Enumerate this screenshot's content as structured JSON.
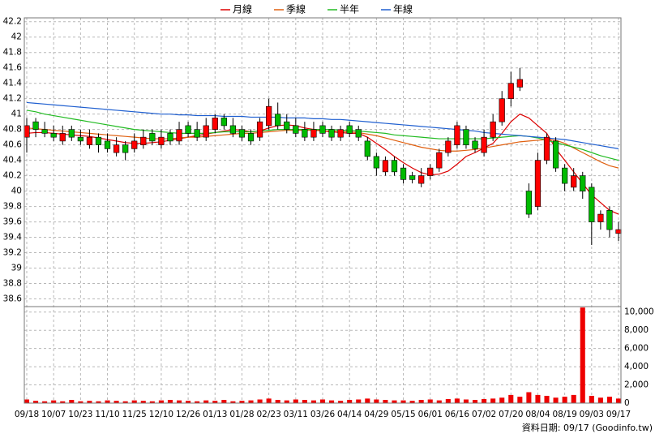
{
  "chart_data": {
    "type": "candlestick",
    "legend": "top",
    "grid": true,
    "up_color": "#ff0000",
    "down_color": "#00bb00",
    "wick_color": "#000000",
    "categories": [
      "09/18",
      null,
      null,
      "10/07",
      null,
      null,
      "10/23",
      null,
      null,
      "11/10",
      null,
      null,
      "11/25",
      null,
      null,
      "12/10",
      null,
      null,
      "12/26",
      null,
      null,
      "01/13",
      null,
      null,
      "01/28",
      null,
      null,
      "02/23",
      null,
      null,
      "03/11",
      null,
      null,
      "03/26",
      null,
      null,
      "04/14",
      null,
      null,
      "04/29",
      null,
      null,
      "05/15",
      null,
      null,
      "06/01",
      null,
      null,
      "06/16",
      null,
      null,
      "07/02",
      null,
      null,
      "07/20",
      null,
      null,
      "08/04",
      null,
      null,
      "08/19",
      null,
      null,
      "09/03",
      null,
      null,
      "09/17"
    ],
    "open": [
      40.7,
      40.9,
      40.8,
      40.75,
      40.65,
      40.8,
      40.7,
      40.6,
      40.7,
      40.65,
      40.5,
      40.6,
      40.55,
      40.6,
      40.75,
      40.6,
      40.75,
      40.65,
      40.85,
      40.8,
      40.7,
      40.8,
      40.95,
      40.85,
      40.8,
      40.75,
      40.7,
      40.85,
      41.0,
      40.9,
      40.85,
      40.8,
      40.7,
      40.85,
      40.8,
      40.7,
      40.85,
      40.8,
      40.65,
      40.45,
      40.25,
      40.4,
      40.3,
      40.2,
      40.1,
      40.2,
      40.3,
      40.5,
      40.6,
      40.8,
      40.65,
      40.5,
      40.7,
      40.9,
      41.2,
      41.35,
      40.0,
      39.8,
      40.4,
      40.65,
      40.3,
      40.05,
      40.2,
      40.05,
      39.6,
      39.75,
      39.45
    ],
    "high": [
      40.95,
      40.95,
      40.9,
      40.85,
      40.85,
      40.85,
      40.8,
      40.8,
      40.75,
      40.75,
      40.7,
      40.65,
      40.75,
      40.8,
      40.8,
      40.8,
      40.8,
      40.9,
      40.9,
      40.9,
      40.95,
      41.0,
      41.0,
      40.95,
      40.85,
      40.8,
      40.95,
      41.2,
      41.15,
      41.0,
      40.95,
      40.9,
      40.9,
      40.9,
      40.85,
      40.85,
      40.9,
      40.85,
      40.7,
      40.5,
      40.45,
      40.45,
      40.35,
      40.25,
      40.3,
      40.35,
      40.55,
      40.7,
      40.9,
      40.85,
      40.7,
      40.8,
      41.0,
      41.3,
      41.55,
      41.6,
      40.1,
      40.5,
      40.75,
      40.7,
      40.35,
      40.3,
      40.25,
      40.1,
      39.75,
      39.8,
      39.6
    ],
    "low": [
      40.5,
      40.7,
      40.7,
      40.65,
      40.6,
      40.65,
      40.6,
      40.55,
      40.5,
      40.5,
      40.45,
      40.4,
      40.5,
      40.55,
      40.6,
      40.55,
      40.6,
      40.6,
      40.7,
      40.65,
      40.65,
      40.75,
      40.8,
      40.7,
      40.65,
      40.6,
      40.65,
      40.8,
      40.8,
      40.75,
      40.7,
      40.65,
      40.65,
      40.7,
      40.65,
      40.65,
      40.7,
      40.65,
      40.4,
      40.2,
      40.2,
      40.2,
      40.1,
      40.1,
      40.05,
      40.15,
      40.25,
      40.45,
      40.55,
      40.55,
      40.5,
      40.45,
      40.65,
      40.85,
      41.1,
      41.3,
      39.65,
      39.75,
      40.35,
      40.25,
      40.0,
      40.0,
      39.9,
      39.3,
      39.5,
      39.4,
      39.35
    ],
    "close": [
      40.85,
      40.8,
      40.75,
      40.7,
      40.75,
      40.7,
      40.65,
      40.7,
      40.6,
      40.55,
      40.6,
      40.5,
      40.65,
      40.7,
      40.65,
      40.7,
      40.65,
      40.8,
      40.75,
      40.7,
      40.85,
      40.95,
      40.85,
      40.75,
      40.7,
      40.65,
      40.9,
      41.1,
      40.85,
      40.8,
      40.75,
      40.7,
      40.8,
      40.75,
      40.7,
      40.8,
      40.75,
      40.7,
      40.45,
      40.3,
      40.4,
      40.25,
      40.15,
      40.15,
      40.2,
      40.3,
      40.5,
      40.65,
      40.85,
      40.6,
      40.55,
      40.7,
      40.9,
      41.2,
      41.4,
      41.45,
      39.7,
      40.4,
      40.7,
      40.3,
      40.1,
      40.2,
      40.0,
      39.6,
      39.7,
      39.5,
      39.5
    ],
    "series": [
      {
        "name": "月線",
        "color": "#dd0000",
        "values": [
          40.75,
          40.76,
          40.76,
          40.75,
          40.74,
          40.73,
          40.72,
          40.71,
          40.69,
          40.67,
          40.65,
          40.63,
          40.62,
          40.62,
          40.63,
          40.64,
          40.66,
          40.68,
          40.7,
          40.72,
          40.74,
          40.76,
          40.78,
          40.8,
          40.79,
          40.77,
          40.78,
          40.82,
          40.85,
          40.86,
          40.85,
          40.82,
          40.8,
          40.78,
          40.77,
          40.76,
          40.75,
          40.75,
          40.7,
          40.62,
          40.54,
          40.45,
          40.37,
          40.3,
          40.24,
          40.21,
          40.22,
          40.26,
          40.35,
          40.45,
          40.5,
          40.56,
          40.62,
          40.75,
          40.9,
          41.0,
          40.95,
          40.85,
          40.75,
          40.55,
          40.4,
          40.25,
          40.1,
          39.95,
          39.85,
          39.75,
          39.7
        ]
      },
      {
        "name": "季線",
        "color": "#e06010",
        "values": [
          40.82,
          40.81,
          40.8,
          40.79,
          40.78,
          40.77,
          40.76,
          40.75,
          40.74,
          40.73,
          40.72,
          40.71,
          40.7,
          40.69,
          40.68,
          40.68,
          40.68,
          40.69,
          40.7,
          40.7,
          40.71,
          40.72,
          40.73,
          40.74,
          40.75,
          40.75,
          40.76,
          40.77,
          40.78,
          40.79,
          40.79,
          40.79,
          40.79,
          40.78,
          40.78,
          40.77,
          40.77,
          40.76,
          40.74,
          40.72,
          40.69,
          40.66,
          40.63,
          40.6,
          40.57,
          40.55,
          40.53,
          40.52,
          40.52,
          40.53,
          40.54,
          40.56,
          40.58,
          40.6,
          40.62,
          40.64,
          40.65,
          40.66,
          40.67,
          40.66,
          40.62,
          40.56,
          40.5,
          40.44,
          40.38,
          40.33,
          40.3
        ]
      },
      {
        "name": "半年",
        "color": "#22bb22",
        "values": [
          41.05,
          41.03,
          41.0,
          40.98,
          40.96,
          40.94,
          40.92,
          40.9,
          40.88,
          40.86,
          40.84,
          40.82,
          40.8,
          40.79,
          40.78,
          40.77,
          40.76,
          40.75,
          40.75,
          40.75,
          40.75,
          40.76,
          40.77,
          40.77,
          40.77,
          40.77,
          40.78,
          40.79,
          40.8,
          40.8,
          40.8,
          40.8,
          40.8,
          40.8,
          40.8,
          40.79,
          40.79,
          40.78,
          40.77,
          40.76,
          40.75,
          40.73,
          40.72,
          40.71,
          40.7,
          40.69,
          40.68,
          40.68,
          40.68,
          40.68,
          40.68,
          40.68,
          40.69,
          40.7,
          40.71,
          40.72,
          40.71,
          40.69,
          40.66,
          40.63,
          40.6,
          40.57,
          40.54,
          40.5,
          40.46,
          40.43,
          40.4
        ]
      },
      {
        "name": "年線",
        "color": "#1f5fd0",
        "values": [
          41.15,
          41.14,
          41.13,
          41.12,
          41.11,
          41.1,
          41.09,
          41.08,
          41.07,
          41.06,
          41.05,
          41.04,
          41.03,
          41.02,
          41.01,
          41.0,
          41.0,
          40.99,
          40.99,
          40.98,
          40.98,
          40.98,
          40.97,
          40.97,
          40.97,
          40.96,
          40.96,
          40.96,
          40.96,
          40.95,
          40.95,
          40.95,
          40.94,
          40.94,
          40.93,
          40.93,
          40.92,
          40.91,
          40.9,
          40.89,
          40.88,
          40.87,
          40.86,
          40.85,
          40.84,
          40.83,
          40.82,
          40.81,
          40.8,
          40.79,
          40.78,
          40.76,
          40.75,
          40.74,
          40.73,
          40.72,
          40.71,
          40.7,
          40.69,
          40.68,
          40.67,
          40.65,
          40.63,
          40.61,
          40.59,
          40.57,
          40.55
        ]
      }
    ],
    "ylim": [
      38.5,
      42.25
    ],
    "yticks": [
      38.6,
      38.8,
      39,
      39.2,
      39.4,
      39.6,
      39.8,
      40,
      40.2,
      40.4,
      40.6,
      40.8,
      41,
      41.2,
      41.4,
      41.6,
      41.8,
      42,
      42.2
    ],
    "volume": {
      "color": "#ee0000",
      "values": [
        400,
        250,
        200,
        300,
        200,
        350,
        200,
        250,
        200,
        300,
        250,
        200,
        300,
        250,
        200,
        300,
        350,
        300,
        250,
        200,
        300,
        250,
        350,
        200,
        250,
        300,
        400,
        500,
        350,
        300,
        400,
        350,
        300,
        400,
        300,
        250,
        350,
        400,
        500,
        400,
        350,
        300,
        300,
        250,
        350,
        400,
        300,
        450,
        500,
        400,
        350,
        450,
        500,
        600,
        900,
        700,
        1200,
        900,
        800,
        600,
        700,
        900,
        10500,
        800,
        600,
        700,
        500
      ],
      "ylim": [
        0,
        10600
      ],
      "yticks": [
        0,
        {
          "value": 2000,
          "label": "2,000"
        },
        {
          "value": 4000,
          "label": "4,000"
        },
        {
          "value": 6000,
          "label": "6,000"
        },
        {
          "value": 8000,
          "label": "8,000"
        },
        {
          "value": 10000,
          "label": "10,000"
        }
      ]
    },
    "source_note": "資料日期: 09/17 (Goodinfo.tw)"
  }
}
